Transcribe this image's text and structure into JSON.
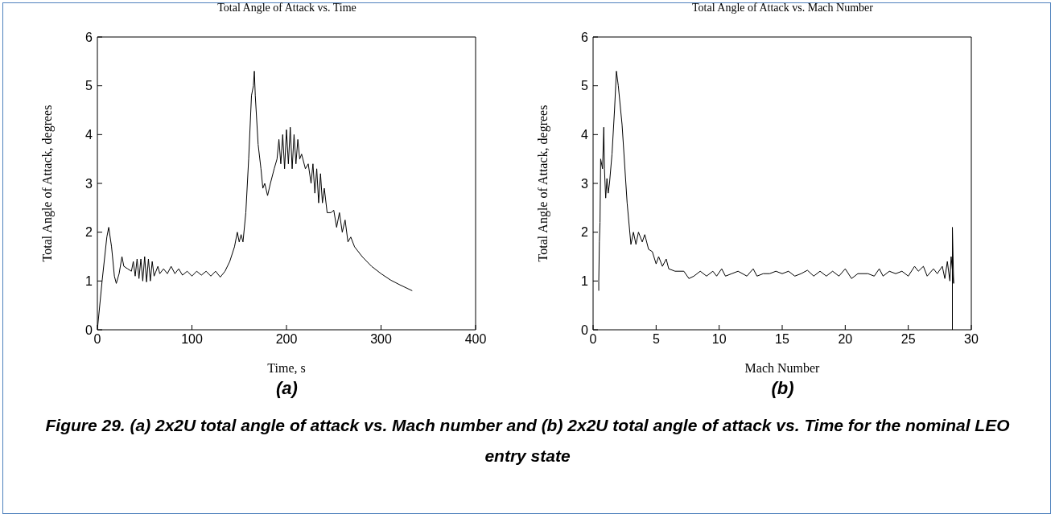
{
  "chart_data": [
    {
      "type": "line",
      "title": "Total Angle of Attack vs. Time",
      "xlabel": "Time, s",
      "ylabel": "Total Angle of Attack, degrees",
      "xlim": [
        0,
        400
      ],
      "xticks": [
        0,
        100,
        200,
        300,
        400
      ],
      "ylim": [
        0,
        6
      ],
      "yticks": [
        0,
        1,
        2,
        3,
        4,
        5,
        6
      ],
      "annotations": [
        "(a)",
        "Figure 29. (a) 2x2U total angle of attack vs. Mach number and (b) 2x2U total angle of attack vs. Time for the nominal LEO entry state"
      ],
      "series": [
        {
          "color": "#000000",
          "x": [
            0,
            5,
            10,
            12,
            15,
            18,
            20,
            23,
            26,
            28,
            32,
            36,
            38,
            40,
            42,
            44,
            46,
            48,
            50,
            52,
            54,
            56,
            58,
            60,
            64,
            66,
            70,
            74,
            78,
            82,
            86,
            90,
            95,
            100,
            105,
            110,
            115,
            120,
            125,
            130,
            135,
            140,
            145,
            148,
            150,
            152,
            154,
            157,
            160,
            163,
            165,
            166,
            167,
            170,
            173,
            175,
            177,
            180,
            183,
            187,
            190,
            192,
            194,
            196,
            198,
            200,
            202,
            204,
            206,
            208,
            210,
            212,
            214,
            216,
            220,
            223,
            226,
            228,
            230,
            232,
            234,
            236,
            238,
            240,
            243,
            247,
            250,
            253,
            256,
            259,
            262,
            265,
            268,
            272,
            280,
            290,
            300,
            310,
            320,
            333
          ],
          "values": [
            0,
            1.0,
            1.9,
            2.1,
            1.7,
            1.1,
            0.95,
            1.15,
            1.5,
            1.3,
            1.25,
            1.2,
            1.4,
            1.1,
            1.45,
            1.05,
            1.45,
            1.0,
            1.5,
            0.98,
            1.45,
            1.0,
            1.4,
            1.1,
            1.3,
            1.15,
            1.25,
            1.15,
            1.3,
            1.15,
            1.25,
            1.12,
            1.2,
            1.1,
            1.2,
            1.12,
            1.2,
            1.1,
            1.2,
            1.08,
            1.2,
            1.4,
            1.7,
            2.0,
            1.8,
            1.95,
            1.8,
            2.4,
            3.5,
            4.8,
            5.0,
            5.3,
            4.8,
            3.8,
            3.3,
            2.9,
            3.0,
            2.75,
            3.0,
            3.3,
            3.5,
            3.9,
            3.4,
            4.0,
            3.3,
            4.1,
            3.4,
            4.15,
            3.3,
            4.0,
            3.4,
            3.9,
            3.5,
            3.6,
            3.3,
            3.4,
            3.0,
            3.4,
            2.8,
            3.3,
            2.6,
            3.2,
            2.6,
            2.9,
            2.4,
            2.4,
            2.45,
            2.1,
            2.4,
            2.0,
            2.25,
            1.8,
            1.9,
            1.7,
            1.5,
            1.3,
            1.15,
            1.02,
            0.92,
            0.8
          ]
        }
      ]
    },
    {
      "type": "line",
      "title": "Total Angle of Attack vs. Mach Number",
      "xlabel": "Mach Number",
      "ylabel": "Total Angle of Attack, degrees",
      "xlim": [
        0,
        30
      ],
      "xticks": [
        0,
        5,
        10,
        15,
        20,
        25,
        30
      ],
      "ylim": [
        0,
        6
      ],
      "yticks": [
        0,
        1,
        2,
        3,
        4,
        5,
        6
      ],
      "annotations": [
        "(b)"
      ],
      "series": [
        {
          "color": "#000000",
          "x": [
            28.5,
            28.5,
            28.6,
            28.4,
            28.3,
            28.1,
            27.9,
            27.7,
            27.3,
            27,
            26.5,
            26.2,
            25.8,
            25.5,
            25,
            24.5,
            24,
            23.5,
            23,
            22.7,
            22.3,
            21.8,
            21,
            20.5,
            20,
            19.5,
            19,
            18.5,
            18,
            17.5,
            17,
            16.5,
            16,
            15.5,
            15,
            14.5,
            14,
            13.5,
            13,
            12.7,
            12.2,
            11.5,
            11,
            10.5,
            10.2,
            9.8,
            9.5,
            9,
            8.5,
            8,
            7.6,
            7.2,
            6.5,
            6,
            5.8,
            5.5,
            5.2,
            5,
            4.7,
            4.4,
            4.1,
            3.9,
            3.6,
            3.4,
            3.2,
            3.0,
            2.7,
            2.3,
            2.0,
            1.85,
            1.7,
            1.5,
            1.3,
            1.2,
            1.1,
            1.0,
            0.9,
            0.85,
            0.75,
            0.6,
            0.55,
            0.5,
            0.45,
            0.45
          ],
          "values": [
            0,
            2.1,
            0.95,
            1.5,
            1.0,
            1.4,
            1.05,
            1.3,
            1.15,
            1.25,
            1.1,
            1.3,
            1.2,
            1.3,
            1.1,
            1.2,
            1.15,
            1.2,
            1.1,
            1.25,
            1.1,
            1.15,
            1.15,
            1.05,
            1.25,
            1.1,
            1.2,
            1.1,
            1.2,
            1.1,
            1.22,
            1.15,
            1.1,
            1.2,
            1.15,
            1.2,
            1.15,
            1.15,
            1.1,
            1.25,
            1.1,
            1.2,
            1.15,
            1.1,
            1.25,
            1.1,
            1.2,
            1.1,
            1.2,
            1.1,
            1.05,
            1.2,
            1.2,
            1.25,
            1.45,
            1.3,
            1.5,
            1.35,
            1.6,
            1.65,
            1.95,
            1.8,
            2.0,
            1.75,
            2.0,
            1.75,
            2.6,
            4.2,
            5.0,
            5.3,
            4.5,
            3.6,
            3.0,
            2.8,
            3.1,
            2.7,
            3.3,
            4.15,
            3.3,
            3.5,
            2.2,
            1.8,
            1.0,
            0.8
          ]
        }
      ]
    }
  ]
}
